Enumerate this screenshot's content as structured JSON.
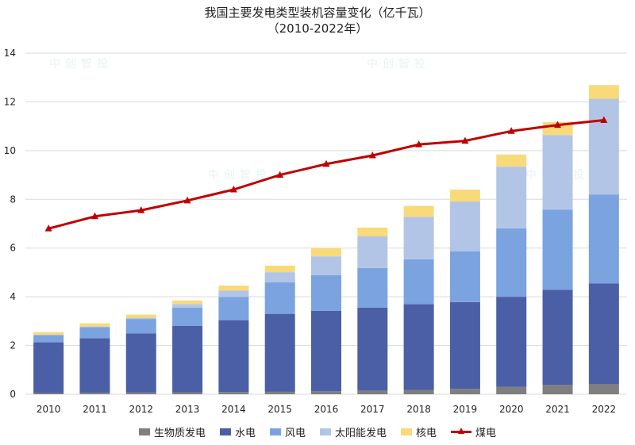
{
  "chart_data": {
    "type": "bar",
    "subtype": "stacked bar with line overlay",
    "title": "我国主要发电类型装机容量变化（亿千瓦）",
    "subtitle": "（2010-2022年）",
    "categories": [
      "2010",
      "2011",
      "2012",
      "2013",
      "2014",
      "2015",
      "2016",
      "2017",
      "2018",
      "2019",
      "2020",
      "2021",
      "2022"
    ],
    "ylim": [
      0,
      14
    ],
    "yticks": [
      "0",
      "2",
      "4",
      "6",
      "8",
      "10",
      "12",
      "14"
    ],
    "grid": true,
    "legend_position": "bottom",
    "series": [
      {
        "name": "生物质发电",
        "type": "bar",
        "color": "#7f7f7f",
        "values": [
          0.05,
          0.06,
          0.07,
          0.08,
          0.09,
          0.1,
          0.12,
          0.15,
          0.18,
          0.22,
          0.3,
          0.38,
          0.41
        ]
      },
      {
        "name": "水电",
        "type": "bar",
        "color": "#4a5fa5",
        "values": [
          2.08,
          2.24,
          2.42,
          2.72,
          2.95,
          3.2,
          3.3,
          3.4,
          3.52,
          3.56,
          3.7,
          3.91,
          4.14
        ]
      },
      {
        "name": "风电",
        "type": "bar",
        "color": "#7aa3e0",
        "values": [
          0.3,
          0.45,
          0.6,
          0.75,
          0.95,
          1.29,
          1.47,
          1.63,
          1.84,
          2.09,
          2.81,
          3.28,
          3.65
        ]
      },
      {
        "name": "太阳能发电",
        "type": "bar",
        "color": "#b2c5e6",
        "values": [
          0.01,
          0.03,
          0.05,
          0.15,
          0.27,
          0.42,
          0.77,
          1.3,
          1.74,
          2.04,
          2.53,
          3.07,
          3.93
        ]
      },
      {
        "name": "核电",
        "type": "bar",
        "color": "#f8da7a",
        "values": [
          0.11,
          0.13,
          0.13,
          0.15,
          0.2,
          0.27,
          0.34,
          0.36,
          0.45,
          0.49,
          0.5,
          0.53,
          0.56
        ]
      },
      {
        "name": "煤电",
        "type": "line",
        "color": "#c00000",
        "values": [
          6.8,
          7.3,
          7.55,
          7.95,
          8.4,
          9.0,
          9.45,
          9.8,
          10.25,
          10.4,
          10.8,
          11.05,
          11.25
        ]
      }
    ]
  },
  "watermark_text": "中创智投"
}
